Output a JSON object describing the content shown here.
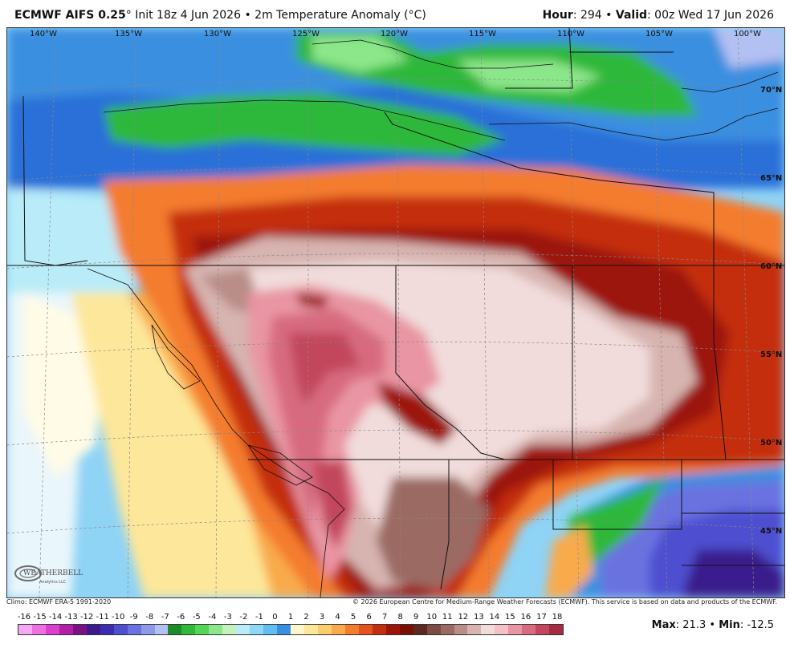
{
  "header": {
    "model": "ECMWF AIFS 0.25",
    "model_degree": "°",
    "init": "Init 18z 4 Jun 2026",
    "bullet": "•",
    "field": "2m Temperature Anomaly (°C)",
    "hour_label": "Hour",
    "hour_value": ": 294",
    "valid_label": "Valid",
    "valid_value": ": 00z Wed 17 Jun 2026"
  },
  "map": {
    "lon_labels": [
      "140°W",
      "135°W",
      "130°W",
      "125°W",
      "120°W",
      "115°W",
      "110°W",
      "105°W",
      "100°W"
    ],
    "lat_labels": [
      "70°N",
      "65°N",
      "60°N",
      "55°N",
      "50°N",
      "45°N"
    ],
    "logo_text": "WEATHERBELL",
    "logo_sub": "Analytics LLC"
  },
  "footer": {
    "climo": "Climo: ECMWF ERA-5 1991-2020",
    "copyright": "© 2026 European Centre for Medium-Range Weather Forecasts (ECMWF). This service is based on data and products of the ECMWF."
  },
  "legend": {
    "ticks": [
      "-16",
      "-15",
      "-14",
      "-13",
      "-12",
      "-11",
      "-10",
      "-9",
      "-8",
      "-7",
      "-6",
      "-5",
      "-4",
      "-3",
      "-2",
      "-1",
      "0",
      "1",
      "2",
      "3",
      "4",
      "5",
      "6",
      "7",
      "8",
      "9",
      "10",
      "11",
      "12",
      "13",
      "14",
      "15",
      "16",
      "17",
      "18"
    ],
    "colors": [
      "#f6a8f0",
      "#ee6fe2",
      "#dc3fcf",
      "#b21fa6",
      "#7a1283",
      "#3a1a8c",
      "#3b2cb0",
      "#4d4fd0",
      "#6a72e0",
      "#8e99ea",
      "#b3c0f2",
      "#1e8b2a",
      "#2fb83a",
      "#55d455",
      "#8ce68a",
      "#c4f2bf",
      "#b9ecf8",
      "#8ed7f5",
      "#62bdf0",
      "#3b8fe0",
      "#fff6cc",
      "#fde79a",
      "#fbcd6c",
      "#f9aa4c",
      "#f47c2e",
      "#e4521d",
      "#c42d10",
      "#9c1508",
      "#7a0f04",
      "#5a2a22",
      "#7d4a44",
      "#9b6a64",
      "#b98d88",
      "#d7b4b0",
      "#f1dcdb",
      "#f4c1c8",
      "#e995a3",
      "#d86b7f",
      "#c2475d",
      "#a52b41"
    ],
    "max_label": "Max",
    "max_value": ": 21.3",
    "sep": "•",
    "min_label": "Min",
    "min_value": ": -12.5"
  }
}
